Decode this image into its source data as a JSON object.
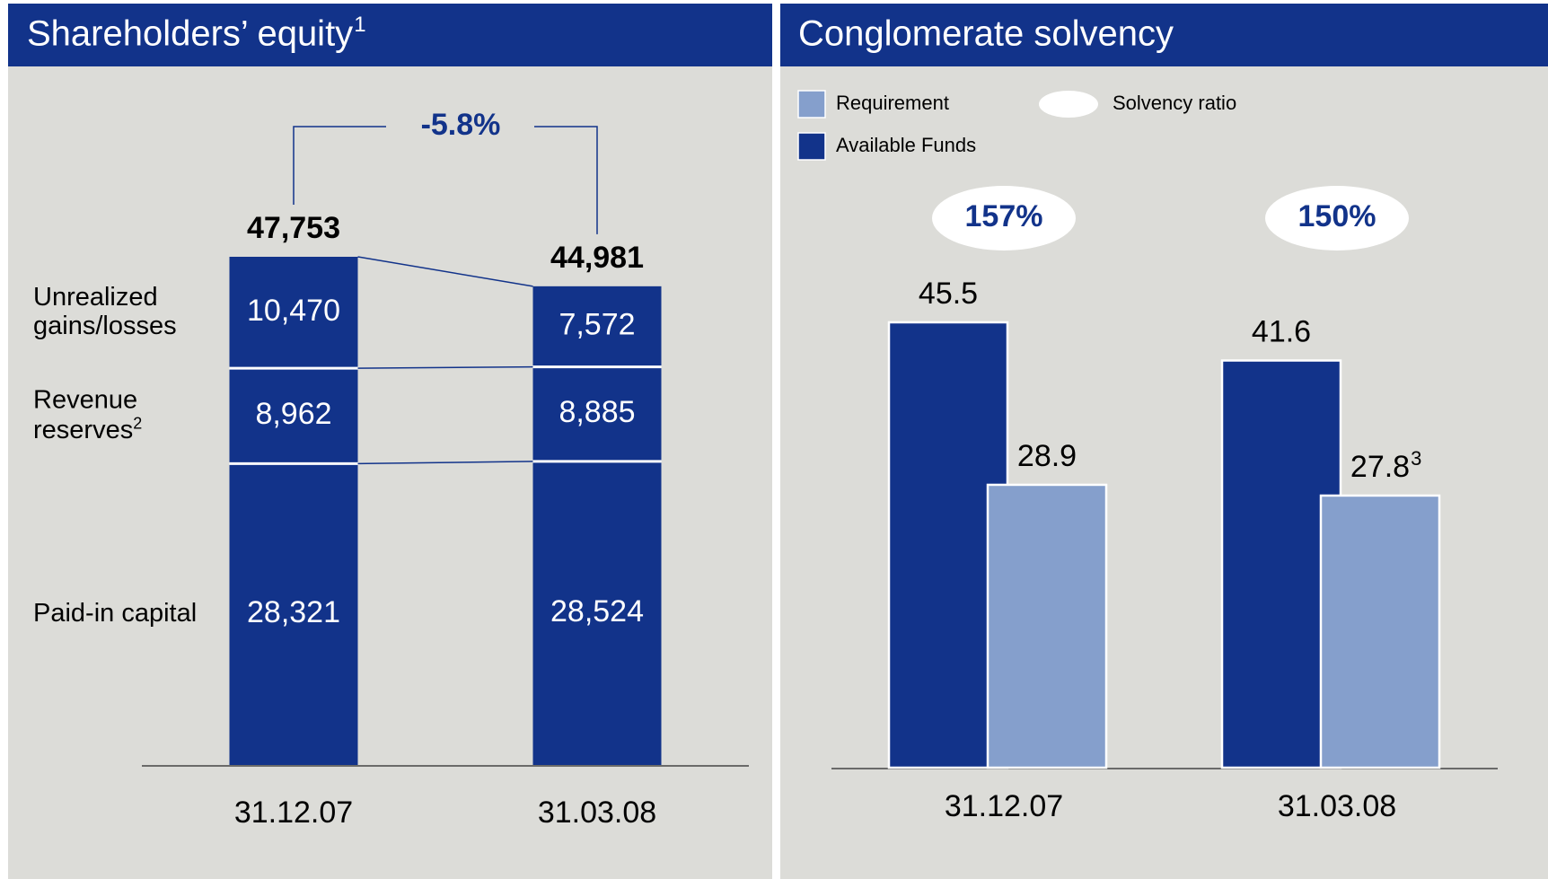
{
  "chart_data": [
    {
      "type": "stacked_bar",
      "title": "Shareholders’ equity",
      "title_note": "1",
      "categories": [
        "31.12.07",
        "31.03.08"
      ],
      "color": "#12338a",
      "series": [
        {
          "name": "Paid-in capital",
          "values": [
            28321,
            28524
          ],
          "value_labels": [
            "28,321",
            "28,524"
          ]
        },
        {
          "name": "Revenue reserves",
          "name_note": "2",
          "values": [
            8962,
            8885
          ],
          "value_labels": [
            "8,962",
            "8,885"
          ]
        },
        {
          "name": "Unrealized gains/losses",
          "values": [
            10470,
            7572
          ],
          "value_labels": [
            "10,470",
            "7,572"
          ]
        }
      ],
      "totals": [
        47753,
        44981
      ],
      "total_labels": [
        "47,753",
        "44,981"
      ],
      "change": -5.8,
      "change_label": "-5.8%"
    },
    {
      "type": "grouped_bar",
      "title": "Conglomerate solvency",
      "categories": [
        "31.12.07",
        "31.03.08"
      ],
      "series": [
        {
          "name": "Available Funds",
          "color": "#12338a",
          "values": [
            45.5,
            41.6
          ]
        },
        {
          "name": "Requirement",
          "color": "#859fcc",
          "values": [
            28.9,
            27.8
          ],
          "value_notes": [
            null,
            "3"
          ]
        }
      ],
      "ratio_name": "Solvency ratio",
      "ratios": [
        157,
        150
      ],
      "ratio_labels": [
        "157%",
        "150%"
      ]
    }
  ]
}
